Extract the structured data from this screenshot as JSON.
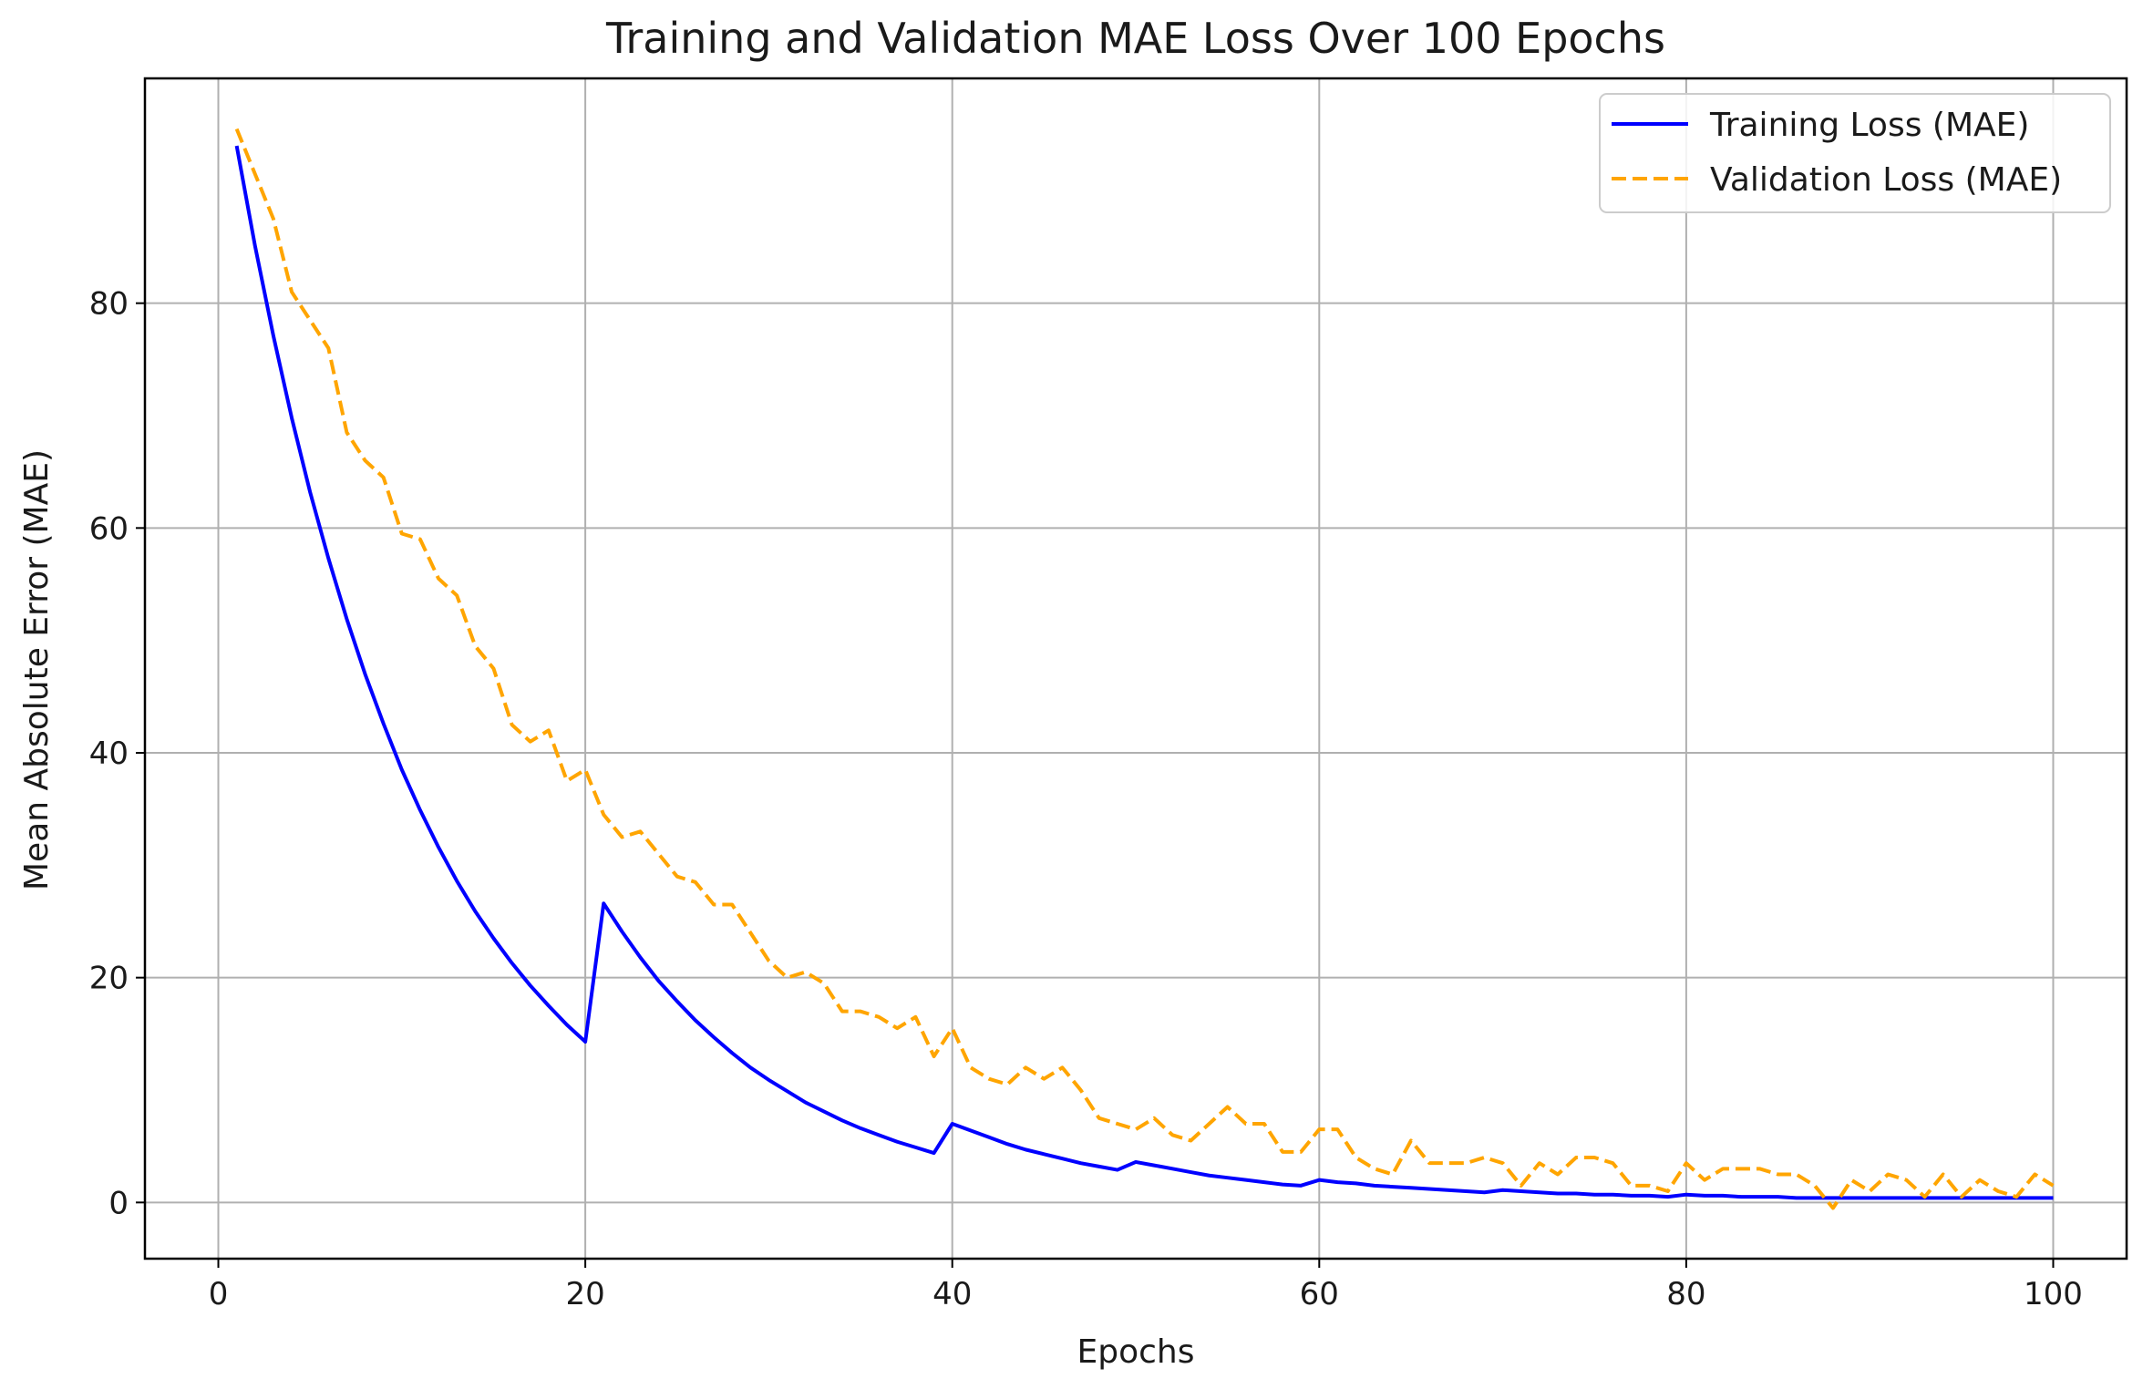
{
  "chart_data": {
    "type": "line",
    "title": "Training and Validation MAE Loss Over 100 Epochs",
    "xlabel": "Epochs",
    "ylabel": "Mean Absolute Error (MAE)",
    "xlim": [
      -4,
      104
    ],
    "ylim": [
      -5,
      100
    ],
    "xticks": [
      0,
      20,
      40,
      60,
      80,
      100
    ],
    "yticks": [
      0,
      20,
      40,
      60,
      80
    ],
    "grid": true,
    "legend_position": "top-right",
    "series": [
      {
        "name": "Training Loss (MAE)",
        "color": "#0000ff",
        "style": "solid",
        "x": [
          1,
          2,
          3,
          4,
          5,
          6,
          7,
          8,
          9,
          10,
          11,
          12,
          13,
          14,
          15,
          16,
          17,
          18,
          19,
          20,
          21,
          22,
          23,
          24,
          25,
          26,
          27,
          28,
          29,
          30,
          31,
          32,
          33,
          34,
          35,
          36,
          37,
          38,
          39,
          40,
          41,
          42,
          43,
          44,
          45,
          46,
          47,
          48,
          49,
          50,
          51,
          52,
          53,
          54,
          55,
          56,
          57,
          58,
          59,
          60,
          61,
          62,
          63,
          64,
          65,
          66,
          67,
          68,
          69,
          70,
          71,
          72,
          73,
          74,
          75,
          76,
          77,
          78,
          79,
          80,
          81,
          82,
          83,
          84,
          85,
          86,
          87,
          88,
          89,
          90,
          91,
          92,
          93,
          94,
          95,
          96,
          97,
          98,
          99,
          100
        ],
        "values": [
          94.0,
          85.1,
          77.1,
          69.8,
          63.2,
          57.3,
          51.9,
          47.0,
          42.6,
          38.5,
          34.9,
          31.6,
          28.6,
          25.9,
          23.5,
          21.3,
          19.3,
          17.5,
          15.8,
          14.3,
          26.6,
          24.1,
          21.8,
          19.7,
          17.9,
          16.2,
          14.7,
          13.3,
          12.0,
          10.9,
          9.9,
          8.9,
          8.1,
          7.3,
          6.6,
          6.0,
          5.4,
          4.9,
          4.4,
          7.0,
          6.4,
          5.8,
          5.2,
          4.7,
          4.3,
          3.9,
          3.5,
          3.2,
          2.9,
          3.6,
          3.3,
          3.0,
          2.7,
          2.4,
          2.2,
          2.0,
          1.8,
          1.6,
          1.5,
          2.0,
          1.8,
          1.7,
          1.5,
          1.4,
          1.3,
          1.2,
          1.1,
          1.0,
          0.9,
          1.1,
          1.0,
          0.9,
          0.8,
          0.8,
          0.7,
          0.7,
          0.6,
          0.6,
          0.5,
          0.7,
          0.6,
          0.6,
          0.5,
          0.5,
          0.5,
          0.4,
          0.4,
          0.4,
          0.4,
          0.4,
          0.4,
          0.4,
          0.4,
          0.4,
          0.4,
          0.4,
          0.4,
          0.4,
          0.4,
          0.4
        ]
      },
      {
        "name": "Validation Loss (MAE)",
        "color": "#ffa500",
        "style": "dashed",
        "x": [
          1,
          2,
          3,
          4,
          5,
          6,
          7,
          8,
          9,
          10,
          11,
          12,
          13,
          14,
          15,
          16,
          17,
          18,
          19,
          20,
          21,
          22,
          23,
          24,
          25,
          26,
          27,
          28,
          29,
          30,
          31,
          32,
          33,
          34,
          35,
          36,
          37,
          38,
          39,
          40,
          41,
          42,
          43,
          44,
          45,
          46,
          47,
          48,
          49,
          50,
          51,
          52,
          53,
          54,
          55,
          56,
          57,
          58,
          59,
          60,
          61,
          62,
          63,
          64,
          65,
          66,
          67,
          68,
          69,
          70,
          71,
          72,
          73,
          74,
          75,
          76,
          77,
          78,
          79,
          80,
          81,
          82,
          83,
          84,
          85,
          86,
          87,
          88,
          89,
          90,
          91,
          92,
          93,
          94,
          95,
          96,
          97,
          98,
          99,
          100
        ],
        "values": [
          95.5,
          91.5,
          87.5,
          81.0,
          78.5,
          76.0,
          68.5,
          66.0,
          64.5,
          59.5,
          59.0,
          55.5,
          54.0,
          49.5,
          47.5,
          42.5,
          41.0,
          42.0,
          37.5,
          38.5,
          34.5,
          32.5,
          33.0,
          31.0,
          29.0,
          28.5,
          26.5,
          26.5,
          24.0,
          21.5,
          20.0,
          20.5,
          19.5,
          17.0,
          17.0,
          16.5,
          15.5,
          16.5,
          13.0,
          15.5,
          12.0,
          11.0,
          10.5,
          12.0,
          11.0,
          12.0,
          10.0,
          7.5,
          7.0,
          6.5,
          7.5,
          6.0,
          5.5,
          7.0,
          8.5,
          7.0,
          7.0,
          4.5,
          4.5,
          6.5,
          6.5,
          4.0,
          3.0,
          2.5,
          5.5,
          3.5,
          3.5,
          3.5,
          4.0,
          3.5,
          1.5,
          3.5,
          2.5,
          4.0,
          4.0,
          3.5,
          1.5,
          1.5,
          1.0,
          3.5,
          2.0,
          3.0,
          3.0,
          3.0,
          2.5,
          2.5,
          1.5,
          -0.5,
          2.0,
          1.0,
          2.5,
          2.0,
          0.5,
          2.5,
          0.5,
          2.0,
          1.0,
          0.5,
          2.5,
          1.5
        ]
      }
    ]
  }
}
